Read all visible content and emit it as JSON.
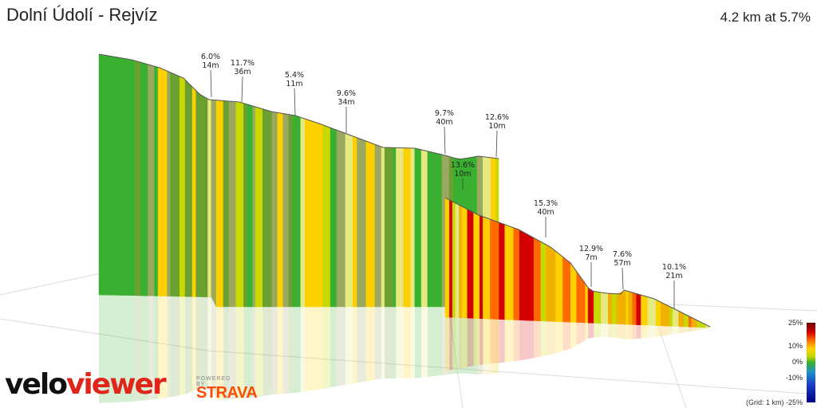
{
  "header": {
    "title": "Dolní Údolí - Rejvíz",
    "summary": "4.2 km at 5.7%"
  },
  "chart_data": {
    "type": "area",
    "title": "Dolní Údolí - Rejvíz",
    "view": "3d-elevation-profile",
    "segment_labels": [
      {
        "gradient": "6.0%",
        "length": "14m"
      },
      {
        "gradient": "11.7%",
        "length": "36m"
      },
      {
        "gradient": "5.4%",
        "length": "11m"
      },
      {
        "gradient": "9.6%",
        "length": "34m"
      },
      {
        "gradient": "9.7%",
        "length": "40m"
      },
      {
        "gradient": "12.6%",
        "length": "10m"
      },
      {
        "gradient": "13.6%",
        "length": "10m"
      },
      {
        "gradient": "15.3%",
        "length": "40m"
      },
      {
        "gradient": "12.9%",
        "length": "7m"
      },
      {
        "gradient": "7.6%",
        "length": "57m"
      },
      {
        "gradient": "10.1%",
        "length": "21m"
      }
    ],
    "legend": {
      "ticks": [
        "25%",
        "10%",
        "0%",
        "-10%",
        "-25%"
      ],
      "placement": "bottom-right"
    },
    "grid_note": "(Grid: 1 km)"
  },
  "branding": {
    "velo": "velo",
    "viewer": "viewer",
    "powered": "POWERED BY",
    "strava": "STRAVA"
  },
  "colors": {
    "steep": "#d40000",
    "hard": "#ff6a00",
    "medium": "#ffd000",
    "moderate": "#c8d800",
    "easy": "#3ab030",
    "brand_red": "#e0261b",
    "strava_orange": "#fc4c02"
  }
}
